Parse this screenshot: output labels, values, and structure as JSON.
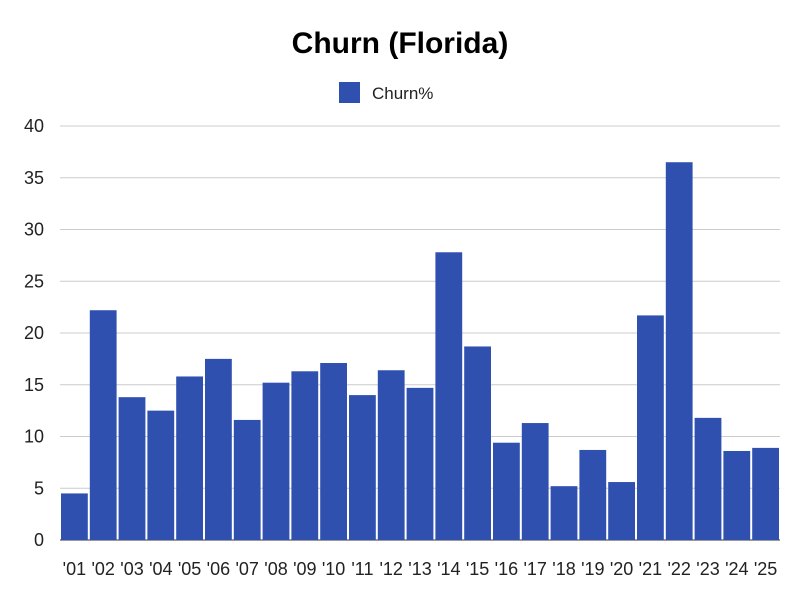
{
  "chart_data": {
    "type": "bar",
    "title": "Churn (Florida)",
    "xlabel": "",
    "ylabel": "",
    "categories": [
      "'01",
      "'02",
      "'03",
      "'04",
      "'05",
      "'06",
      "'07",
      "'08",
      "'09",
      "'10",
      "'11",
      "'12",
      "'13",
      "'14",
      "'15",
      "'16",
      "'17",
      "'18",
      "'19",
      "'20",
      "'21",
      "'22",
      "'23",
      "'24",
      "'25"
    ],
    "series": [
      {
        "name": "Churn%",
        "color": "#3050b0",
        "values": [
          4.5,
          22.2,
          13.8,
          12.5,
          15.8,
          17.5,
          11.6,
          15.2,
          16.3,
          17.1,
          14.0,
          16.4,
          14.7,
          27.8,
          18.7,
          9.4,
          11.3,
          5.2,
          8.7,
          5.6,
          21.7,
          36.5,
          11.8,
          8.6,
          8.9
        ]
      }
    ],
    "ylim": [
      0,
      40
    ],
    "yticks": [
      0,
      5,
      10,
      15,
      20,
      25,
      30,
      35,
      40
    ],
    "grid": true,
    "legend": "top"
  }
}
